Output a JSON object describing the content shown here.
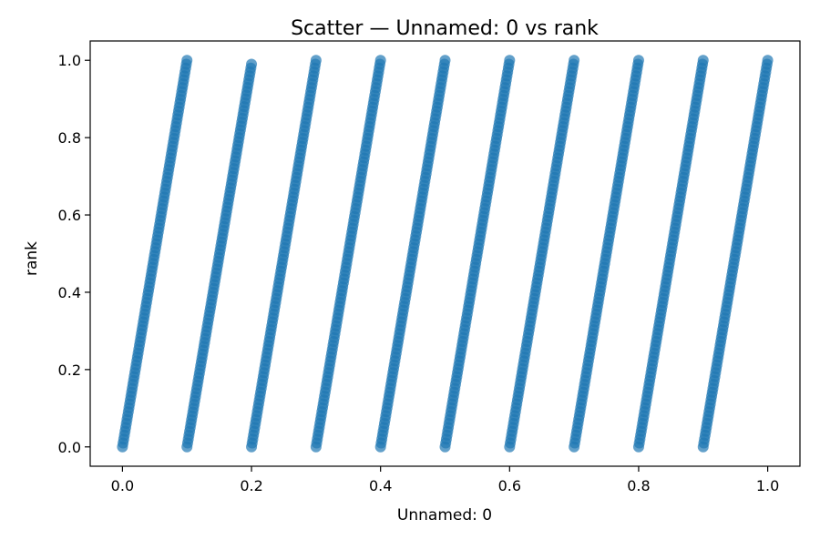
{
  "chart_data": {
    "type": "scatter",
    "title": "Scatter — Unnamed: 0 vs rank",
    "xlabel": "Unnamed: 0",
    "ylabel": "rank",
    "xlim": [
      -0.05,
      1.05
    ],
    "ylim": [
      -0.05,
      1.05
    ],
    "xticks": [
      "0.0",
      "0.2",
      "0.4",
      "0.6",
      "0.8",
      "1.0"
    ],
    "yticks": [
      "0.0",
      "0.2",
      "0.4",
      "0.6",
      "0.8",
      "1.0"
    ],
    "grid": false,
    "legend": "none",
    "marker_color": "#1f77b4",
    "points_per_segment": 100,
    "segments": [
      {
        "x": [
          0.0,
          0.1
        ],
        "y": [
          0.0,
          1.0
        ]
      },
      {
        "x": [
          0.1,
          0.2
        ],
        "y": [
          0.0,
          0.99
        ]
      },
      {
        "x": [
          0.2,
          0.3
        ],
        "y": [
          0.0,
          1.0
        ]
      },
      {
        "x": [
          0.3,
          0.4
        ],
        "y": [
          0.0,
          1.0
        ]
      },
      {
        "x": [
          0.4,
          0.5
        ],
        "y": [
          0.0,
          1.0
        ]
      },
      {
        "x": [
          0.5,
          0.6
        ],
        "y": [
          0.0,
          1.0
        ]
      },
      {
        "x": [
          0.6,
          0.7
        ],
        "y": [
          0.0,
          1.0
        ]
      },
      {
        "x": [
          0.7,
          0.8
        ],
        "y": [
          0.0,
          1.0
        ]
      },
      {
        "x": [
          0.8,
          0.9
        ],
        "y": [
          0.0,
          1.0
        ]
      },
      {
        "x": [
          0.9,
          1.0
        ],
        "y": [
          0.0,
          1.0
        ]
      }
    ]
  }
}
